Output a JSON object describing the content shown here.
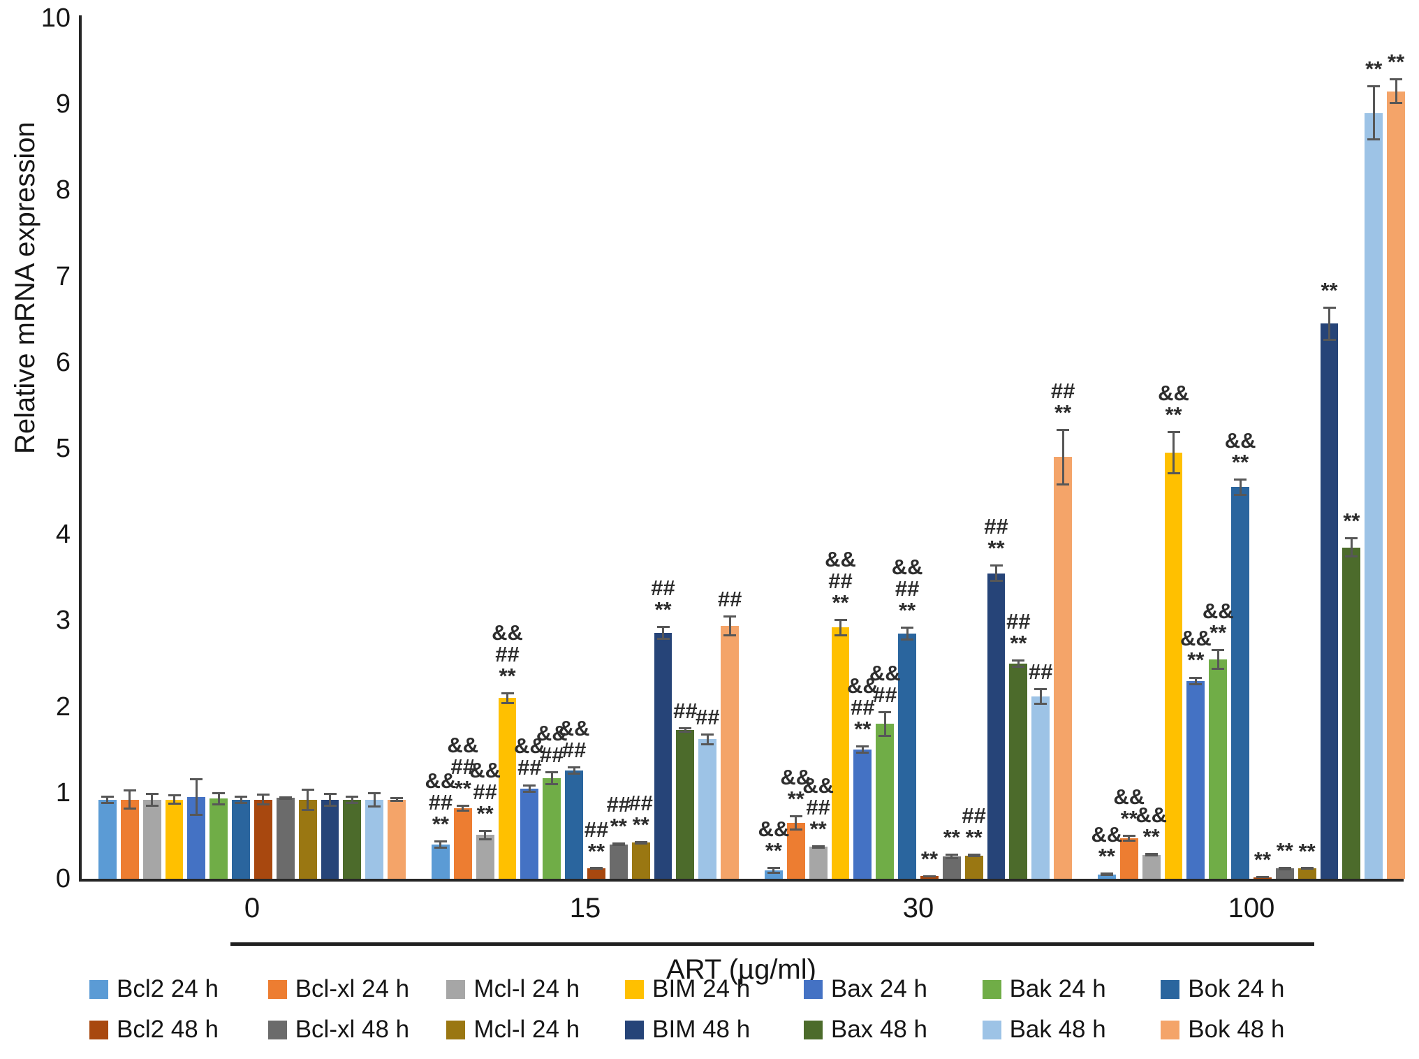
{
  "chart_data": {
    "type": "bar",
    "title": "",
    "xlabel": "ART (µg/ml)",
    "ylabel": "Relative mRNA expression",
    "ylim": [
      0,
      10
    ],
    "yticks": [
      0,
      1,
      2,
      3,
      4,
      5,
      6,
      7,
      8,
      9,
      10
    ],
    "grid": false,
    "legend_position": "bottom",
    "annotation_note": "symbols shown above bars, top line first",
    "categories": [
      "0",
      "15",
      "30",
      "100"
    ],
    "series": [
      {
        "name": "Bcl2 24 h",
        "color": "#5B9BD5",
        "values": [
          0.92,
          0.4,
          0.1,
          0.05
        ],
        "errors": [
          0.05,
          0.05,
          0.04,
          0.02
        ],
        "annotations": [
          [],
          [
            "&&",
            "##",
            "**"
          ],
          [
            "&&",
            "**"
          ],
          [
            "&&",
            "**"
          ]
        ]
      },
      {
        "name": "Bcl-xl 24 h",
        "color": "#ED7D31",
        "values": [
          0.92,
          0.82,
          0.65,
          0.47
        ],
        "errors": [
          0.12,
          0.04,
          0.09,
          0.04
        ],
        "annotations": [
          [],
          [
            "&&",
            "##",
            "**"
          ],
          [
            "&&",
            "**"
          ],
          [
            "&&",
            "**"
          ]
        ]
      },
      {
        "name": "Mcl-l 24 h",
        "color": "#A6A6A6",
        "values": [
          0.92,
          0.51,
          0.37,
          0.28
        ],
        "errors": [
          0.08,
          0.06,
          0.02,
          0.02
        ],
        "annotations": [
          [],
          [
            "&&",
            "##",
            "**"
          ],
          [
            "&&",
            "##",
            "**"
          ],
          [
            "&&",
            "**"
          ]
        ]
      },
      {
        "name": "BIM 24 h",
        "color": "#FFC000",
        "values": [
          0.92,
          2.1,
          2.92,
          4.95
        ],
        "errors": [
          0.06,
          0.07,
          0.1,
          0.25
        ],
        "annotations": [
          [],
          [
            "&&",
            "##",
            "**"
          ],
          [
            "&&",
            "##",
            "**"
          ],
          [
            "&&",
            "**"
          ]
        ]
      },
      {
        "name": "Bax 24 h",
        "color": "#4472C4",
        "values": [
          0.95,
          1.05,
          1.5,
          2.3
        ],
        "errors": [
          0.22,
          0.05,
          0.05,
          0.05
        ],
        "annotations": [
          [],
          [
            "&&",
            "##"
          ],
          [
            "&&",
            "##",
            "**"
          ],
          [
            "&&",
            "**"
          ]
        ]
      },
      {
        "name": "Bak 24 h",
        "color": "#70AD47",
        "values": [
          0.93,
          1.17,
          1.8,
          2.55
        ],
        "errors": [
          0.08,
          0.08,
          0.15,
          0.12
        ],
        "annotations": [
          [],
          [
            "&&",
            "##"
          ],
          [
            "&&",
            "##"
          ],
          [
            "&&",
            "**"
          ]
        ]
      },
      {
        "name": "Bok 24 h",
        "color": "#2A659E",
        "values": [
          0.92,
          1.26,
          2.85,
          4.55
        ],
        "errors": [
          0.05,
          0.05,
          0.08,
          0.1
        ],
        "annotations": [
          [],
          [
            "&&",
            "##"
          ],
          [
            "&&",
            "##",
            "**"
          ],
          [
            "&&",
            "**"
          ]
        ]
      },
      {
        "name": "Bcl2 48 h",
        "color": "#A8480F",
        "values": [
          0.92,
          0.12,
          0.03,
          0.02
        ],
        "errors": [
          0.07,
          0.01,
          0.01,
          0.01
        ],
        "annotations": [
          [],
          [
            "##",
            "**"
          ],
          [
            "**"
          ],
          [
            "**"
          ]
        ]
      },
      {
        "name": "Bcl-xl 48 h",
        "color": "#6B6B6B",
        "values": [
          0.94,
          0.4,
          0.26,
          0.12
        ],
        "errors": [
          0.02,
          0.02,
          0.03,
          0.02
        ],
        "annotations": [
          [],
          [
            "##",
            "**"
          ],
          [
            "**"
          ],
          [
            "**"
          ]
        ]
      },
      {
        "name": "Mcl-l 24 h",
        "color": "#9A7712",
        "values": [
          0.92,
          0.42,
          0.27,
          0.12
        ],
        "errors": [
          0.13,
          0.02,
          0.02,
          0.01
        ],
        "annotations": [
          [],
          [
            "##",
            "**"
          ],
          [
            "##",
            "**"
          ],
          [
            "**"
          ]
        ]
      },
      {
        "name": "BIM 48 h",
        "color": "#264478",
        "values": [
          0.92,
          2.86,
          3.55,
          6.45
        ],
        "errors": [
          0.08,
          0.08,
          0.1,
          0.2
        ],
        "annotations": [
          [],
          [
            "##",
            "**"
          ],
          [
            "##",
            "**"
          ],
          [
            "**"
          ]
        ]
      },
      {
        "name": "Bax 48 h",
        "color": "#4C6B2B",
        "values": [
          0.92,
          1.73,
          2.5,
          3.85
        ],
        "errors": [
          0.05,
          0.03,
          0.05,
          0.12
        ],
        "annotations": [
          [],
          [
            "##"
          ],
          [
            "##",
            "**"
          ],
          [
            "**"
          ]
        ]
      },
      {
        "name": "Bak 48 h",
        "color": "#9DC3E6",
        "values": [
          0.92,
          1.62,
          2.12,
          8.9
        ],
        "errors": [
          0.09,
          0.07,
          0.1,
          0.32
        ],
        "annotations": [
          [],
          [
            "##"
          ],
          [
            "##"
          ],
          [
            "**"
          ]
        ]
      },
      {
        "name": "Bok 48 h",
        "color": "#F4A469",
        "values": [
          0.92,
          2.94,
          4.9,
          9.15
        ],
        "errors": [
          0.03,
          0.12,
          0.33,
          0.15
        ],
        "annotations": [
          [],
          [
            "##"
          ],
          [
            "##",
            "**"
          ],
          [
            "**"
          ]
        ]
      }
    ],
    "legend_rows": [
      [
        "Bcl2 24 h",
        "Bcl-xl 24 h",
        "Mcl-l 24 h",
        "BIM 24 h",
        "Bax 24 h",
        "Bak 24 h",
        "Bok 24 h"
      ],
      [
        "Bcl2 48 h",
        "Bcl-xl 48 h",
        "Mcl-l 24 h",
        "BIM 48 h",
        "Bax 48 h",
        "Bak 48 h",
        "Bok 48 h"
      ]
    ],
    "error_bar_color": "#575757",
    "axis_color": "#262626",
    "annotation_color": "#2d2d2d"
  }
}
